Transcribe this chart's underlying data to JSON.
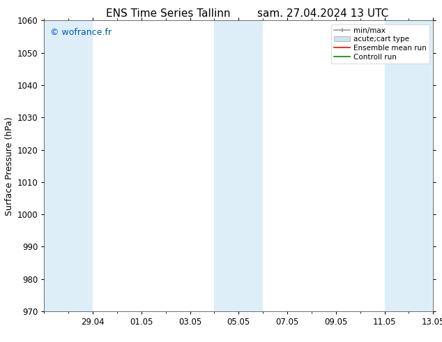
{
  "title_left": "ENS Time Series Tallinn",
  "title_right": "sam. 27.04.2024 13 UTC",
  "ylabel": "Surface Pressure (hPa)",
  "ylim": [
    970,
    1060
  ],
  "watermark": "© wofrance.fr",
  "watermark_color": "#0055bb",
  "legend_labels": [
    "min/max",
    "acute;cart type",
    "Ensemble mean run",
    "Controll run"
  ],
  "legend_colors": [
    "#999999",
    "#cce5f5",
    "#ff0000",
    "#008800"
  ],
  "background_color": "#ffffff",
  "title_fontsize": 11,
  "tick_fontsize": 8.5,
  "ylabel_fontsize": 9,
  "shaded_color": "#ddeef8",
  "xtick_labels": [
    "29.04",
    "01.05",
    "03.05",
    "05.05",
    "07.05",
    "09.05",
    "11.05",
    "13.05"
  ]
}
